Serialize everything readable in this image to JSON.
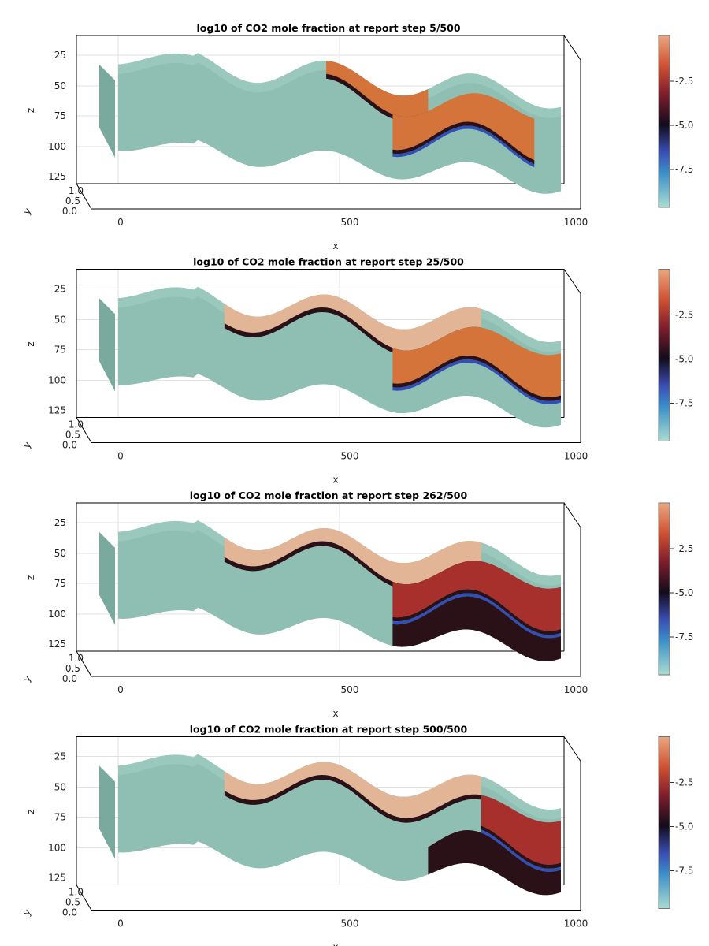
{
  "chart_data": [
    {
      "type": "3d-surface",
      "title": "log10 of CO2 mole fraction at report step 5/500",
      "xlabel": "x",
      "ylabel": "y",
      "zlabel": "z",
      "xticks": [
        "0",
        "500",
        "1000"
      ],
      "yticks": [
        "1.0",
        "0.5",
        "0.0"
      ],
      "zticks": [
        "25",
        "50",
        "75",
        "100",
        "125"
      ],
      "xlim": [
        0,
        1000
      ],
      "ylim": [
        0,
        1
      ],
      "zlim": [
        125,
        15
      ],
      "colorbar": {
        "ticks": [
          "-2.5",
          "-5.0",
          "-7.5"
        ],
        "range": [
          -9.5,
          -0.2
        ]
      },
      "plume_extent": {
        "top_layer_x": [
          470,
          700
        ],
        "middle_x": [
          620,
          940
        ],
        "bottom_x": [
          0,
          0
        ]
      }
    },
    {
      "type": "3d-surface",
      "title": "log10 of CO2 mole fraction at report step 25/500",
      "xlabel": "x",
      "ylabel": "y",
      "zlabel": "z",
      "xticks": [
        "0",
        "500",
        "1000"
      ],
      "yticks": [
        "1.0",
        "0.5",
        "0.0"
      ],
      "zticks": [
        "25",
        "50",
        "75",
        "100",
        "125"
      ],
      "xlim": [
        0,
        1000
      ],
      "ylim": [
        0,
        1
      ],
      "zlim": [
        125,
        15
      ],
      "colorbar": {
        "ticks": [
          "-2.5",
          "-5.0",
          "-7.5"
        ],
        "range": [
          -9.5,
          -0.2
        ]
      },
      "plume_extent": {
        "top_layer_x": [
          240,
          820
        ],
        "middle_x": [
          620,
          1000
        ],
        "bottom_x": [
          0,
          0
        ]
      }
    },
    {
      "type": "3d-surface",
      "title": "log10 of CO2 mole fraction at report step 262/500",
      "xlabel": "x",
      "ylabel": "y",
      "zlabel": "z",
      "xticks": [
        "0",
        "500",
        "1000"
      ],
      "yticks": [
        "1.0",
        "0.5",
        "0.0"
      ],
      "zticks": [
        "25",
        "50",
        "75",
        "100",
        "125"
      ],
      "xlim": [
        0,
        1000
      ],
      "ylim": [
        0,
        1
      ],
      "zlim": [
        125,
        15
      ],
      "colorbar": {
        "ticks": [
          "-2.5",
          "-5.0",
          "-7.5"
        ],
        "range": [
          -9.5,
          -0.2
        ]
      },
      "plume_extent": {
        "top_layer_x": [
          240,
          820
        ],
        "middle_x": [
          620,
          1000
        ],
        "bottom_x": [
          620,
          1000
        ]
      }
    },
    {
      "type": "3d-surface",
      "title": "log10 of CO2 mole fraction at report step 500/500",
      "xlabel": "x",
      "ylabel": "y",
      "zlabel": "z",
      "xticks": [
        "0",
        "500",
        "1000"
      ],
      "yticks": [
        "1.0",
        "0.5",
        "0.0"
      ],
      "zticks": [
        "25",
        "50",
        "75",
        "100",
        "125"
      ],
      "xlim": [
        0,
        1000
      ],
      "ylim": [
        0,
        1
      ],
      "zlim": [
        125,
        15
      ],
      "colorbar": {
        "ticks": [
          "-2.5",
          "-5.0",
          "-7.5"
        ],
        "range": [
          -9.5,
          -0.2
        ]
      },
      "plume_extent": {
        "top_layer_x": [
          240,
          820
        ],
        "middle_x": [
          820,
          1000
        ],
        "bottom_x": [
          700,
          1000
        ]
      }
    }
  ],
  "colors": {
    "background_formation": "#8fbfb3",
    "caprock_low": "#9bc8bd",
    "plume_high": "#e2b596",
    "plume_orange": "#d4733a",
    "plume_red": "#a8302c",
    "plume_dark": "#2a1118",
    "plume_blue": "#3050b8",
    "axis": "#000000",
    "grid": "#e2e2e2"
  }
}
